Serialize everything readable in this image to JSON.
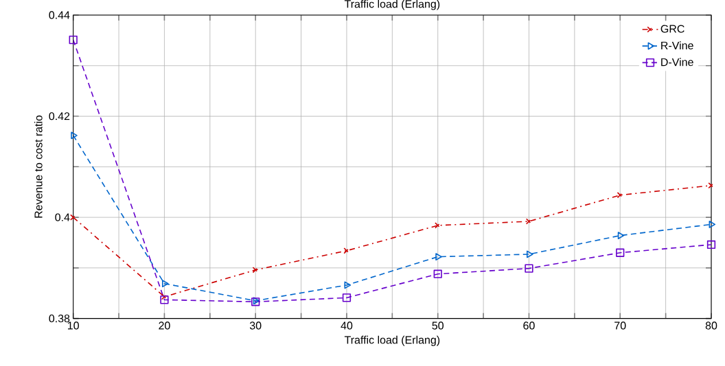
{
  "chart_data": {
    "type": "line",
    "title": "Traffic load (Erlang)",
    "xlabel": "Traffic load (Erlang)",
    "ylabel": "Revenue to cost ratio",
    "x": [
      10,
      20,
      30,
      40,
      50,
      60,
      70,
      80
    ],
    "xlim": [
      10,
      80
    ],
    "ylim": [
      0.38,
      0.44
    ],
    "xticks": [
      10,
      {
        "value": 15,
        "label": null
      },
      20,
      {
        "value": 25,
        "label": null
      },
      30,
      {
        "value": 35,
        "label": null
      },
      40,
      {
        "value": 45,
        "label": null
      },
      50,
      {
        "value": 55,
        "label": null
      },
      60,
      {
        "value": 65,
        "label": null
      },
      70,
      {
        "value": 75,
        "label": null
      },
      80
    ],
    "yticks": [
      0.38,
      {
        "value": 0.39,
        "label": null
      },
      0.4,
      {
        "value": 0.41,
        "label": null
      },
      0.42,
      {
        "value": 0.43,
        "label": null
      },
      0.44
    ],
    "grid": true,
    "legend": "top right",
    "series": [
      {
        "name": "GRC",
        "color": "#cc0000",
        "marker": "cross",
        "line_style": "dashdot",
        "values": [
          0.4,
          0.3843,
          0.3896,
          0.3934,
          0.3984,
          0.3992,
          0.4044,
          0.4063
        ]
      },
      {
        "name": "R-Vine",
        "color": "#0066cc",
        "marker": "triangle",
        "line_style": "dashed",
        "values": [
          0.4162,
          0.3869,
          0.3835,
          0.3866,
          0.3922,
          0.3927,
          0.3964,
          0.3986
        ]
      },
      {
        "name": "D-Vine",
        "color": "#6600cc",
        "marker": "square",
        "line_style": "dashed",
        "values": [
          0.4351,
          0.3837,
          0.3833,
          0.3841,
          0.3888,
          0.3899,
          0.393,
          0.3946
        ]
      }
    ]
  }
}
